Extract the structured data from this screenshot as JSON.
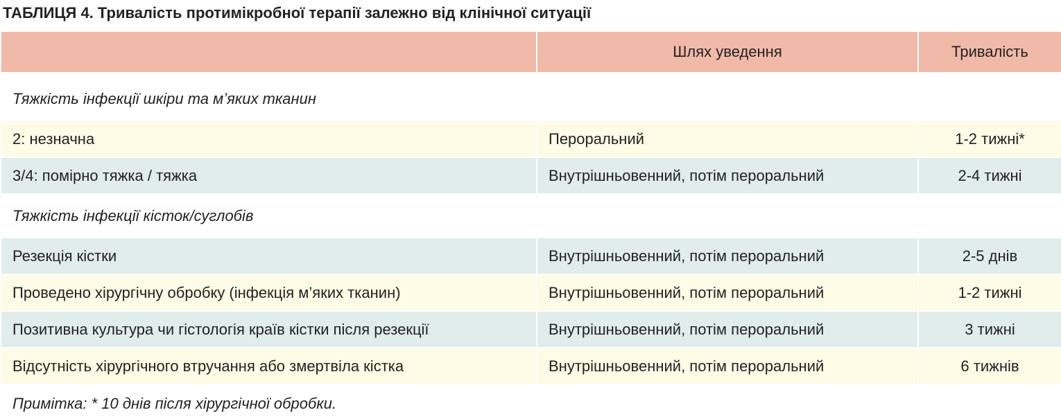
{
  "title": "ТАБЛИЦЯ 4. Тривалість протимікробної терапії залежно від клінічної ситуації",
  "colors": {
    "header_bg": "#f1b9a8",
    "row_yellow": "#fefbe6",
    "row_blue": "#e0edea"
  },
  "columns": [
    "",
    "Шлях уведення",
    "Тривалість"
  ],
  "sections": [
    {
      "label": "Тяжкість інфекції шкіри та м’яких тканин",
      "rows": [
        [
          "2: незначна",
          "Пероральний",
          "1-2 тижні*"
        ],
        [
          "3/4: помірно тяжка / тяжка",
          "Внутрішньовенний, потім пероральний",
          "2-4 тижні"
        ]
      ]
    },
    {
      "label": "Тяжкість інфекції кісток/суглобів",
      "rows": [
        [
          "Резекція кістки",
          "Внутрішньовенний, потім пероральний",
          "2-5 днів"
        ],
        [
          "Проведено хірургічну обробку (інфекція м’яких тканин)",
          "Внутрішньовенний, потім пероральний",
          "1-2 тижні"
        ],
        [
          "Позитивна культура чи гістологія країв кістки після резекції",
          "Внутрішньовенний, потім пероральний",
          "3 тижні"
        ],
        [
          "Відсутність хірургічного втручання або змертвіла кістка",
          "Внутрішньовенний, потім пероральний",
          "6 тижнів"
        ]
      ]
    }
  ],
  "note": "Примітка: * 10 днів після хірургічної обробки."
}
